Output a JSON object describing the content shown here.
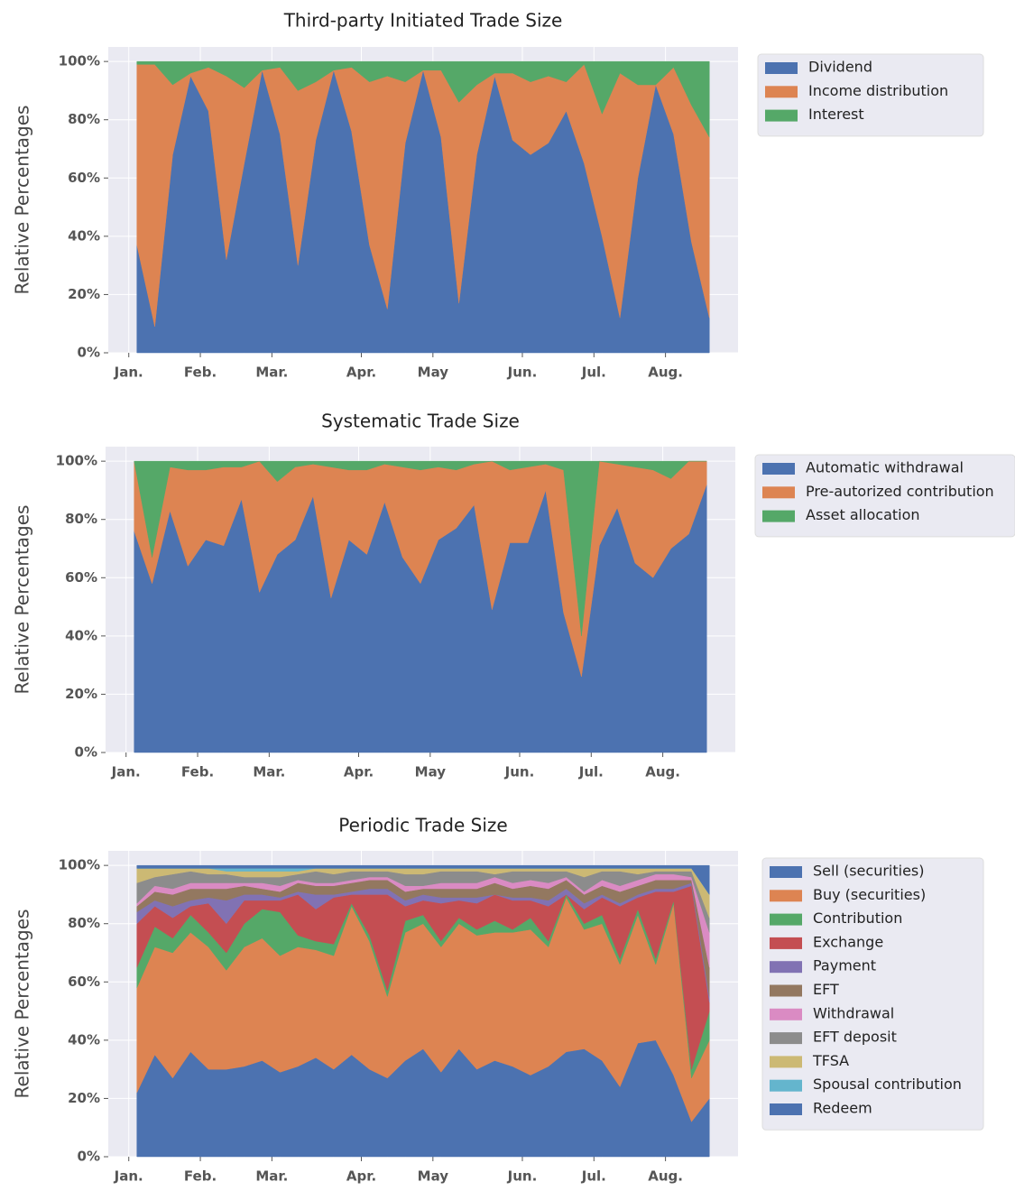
{
  "chart_data": [
    {
      "type": "area",
      "title": "Third-party Initiated Trade Size",
      "ylabel": "Relative Percentages",
      "categories": [
        "Jan.",
        null,
        null,
        null,
        "Feb.",
        null,
        null,
        null,
        "Mar.",
        null,
        null,
        null,
        null,
        "Apr.",
        null,
        null,
        null,
        "May",
        null,
        null,
        null,
        null,
        "Jun.",
        null,
        null,
        null,
        "Jul.",
        null,
        null,
        null,
        "Aug.",
        null,
        null
      ],
      "series": [
        {
          "name": "Dividend",
          "color": "#4c72b0",
          "values": [
            37,
            9,
            68,
            95,
            83,
            32,
            65,
            97,
            75,
            30,
            73,
            97,
            76,
            37,
            15,
            72,
            97,
            74,
            17,
            68,
            95,
            73,
            68,
            72,
            83,
            65,
            40,
            12,
            60,
            92,
            75,
            38,
            12
          ]
        },
        {
          "name": "Income distribution",
          "color": "#dd8452",
          "values": [
            62,
            90,
            24,
            1,
            15,
            63,
            26,
            0,
            23,
            60,
            20,
            0,
            22,
            56,
            80,
            21,
            0,
            23,
            69,
            24,
            1,
            23,
            25,
            23,
            10,
            34,
            42,
            84,
            32,
            0,
            23,
            47,
            62
          ]
        },
        {
          "name": "Interest",
          "color": "#55a868",
          "values": [
            1,
            1,
            8,
            4,
            2,
            5,
            9,
            3,
            2,
            10,
            7,
            3,
            2,
            7,
            5,
            7,
            3,
            3,
            14,
            8,
            4,
            4,
            7,
            5,
            7,
            1,
            18,
            4,
            8,
            8,
            2,
            15,
            26
          ]
        }
      ],
      "ylim": [
        0,
        105
      ],
      "yticks": [
        {
          "value": 0,
          "label": "0%"
        },
        {
          "value": 20,
          "label": "20%"
        },
        {
          "value": 40,
          "label": "40%"
        },
        {
          "value": 60,
          "label": "60%"
        },
        {
          "value": 80,
          "label": "80%"
        },
        {
          "value": 100,
          "label": "100%"
        }
      ],
      "grid": true,
      "legend": "outside upper right"
    },
    {
      "type": "area",
      "title": "Systematic Trade Size",
      "ylabel": "Relative Percentages",
      "categories": [
        "Jan.",
        null,
        null,
        null,
        "Feb.",
        null,
        null,
        null,
        "Mar.",
        null,
        null,
        null,
        null,
        "Apr.",
        null,
        null,
        null,
        "May",
        null,
        null,
        null,
        null,
        "Jun.",
        null,
        null,
        null,
        "Jul.",
        null,
        null,
        null,
        "Aug.",
        null,
        null
      ],
      "series": [
        {
          "name": "Automatic withdrawal",
          "color": "#4c72b0",
          "values": [
            76,
            58,
            83,
            64,
            73,
            71,
            87,
            55,
            68,
            73,
            88,
            53,
            73,
            68,
            86,
            67,
            58,
            73,
            77,
            85,
            49,
            72,
            72,
            90,
            48,
            26,
            71,
            84,
            65,
            60,
            70,
            75,
            92
          ]
        },
        {
          "name": "Pre-autorized contribution",
          "color": "#dd8452",
          "values": [
            24,
            9,
            15,
            33,
            24,
            27,
            11,
            45,
            25,
            25,
            11,
            45,
            24,
            29,
            13,
            31,
            39,
            25,
            20,
            14,
            51,
            25,
            26,
            9,
            49,
            14,
            29,
            15,
            33,
            37,
            24,
            25,
            8
          ]
        },
        {
          "name": "Asset allocation",
          "color": "#55a868",
          "values": [
            0,
            33,
            2,
            3,
            3,
            2,
            2,
            0,
            7,
            2,
            1,
            2,
            3,
            3,
            1,
            2,
            3,
            2,
            3,
            1,
            0,
            3,
            2,
            1,
            3,
            60,
            0,
            1,
            2,
            3,
            6,
            0,
            0
          ]
        }
      ],
      "ylim": [
        0,
        105
      ],
      "yticks": [
        {
          "value": 0,
          "label": "0%"
        },
        {
          "value": 20,
          "label": "20%"
        },
        {
          "value": 40,
          "label": "40%"
        },
        {
          "value": 60,
          "label": "60%"
        },
        {
          "value": 80,
          "label": "80%"
        },
        {
          "value": 100,
          "label": "100%"
        }
      ],
      "grid": true,
      "legend": "outside upper right"
    },
    {
      "type": "area",
      "title": "Periodic Trade Size",
      "ylabel": "Relative Percentages",
      "categories": [
        "Jan.",
        null,
        null,
        null,
        "Feb.",
        null,
        null,
        null,
        "Mar.",
        null,
        null,
        null,
        null,
        "Apr.",
        null,
        null,
        null,
        "May",
        null,
        null,
        null,
        null,
        "Jun.",
        null,
        null,
        null,
        "Jul.",
        null,
        null,
        null,
        "Aug.",
        null,
        null
      ],
      "series": [
        {
          "name": "Sell (securities)",
          "color": "#4c72b0",
          "values": [
            22,
            35,
            27,
            36,
            30,
            30,
            31,
            33,
            29,
            31,
            34,
            30,
            35,
            30,
            27,
            33,
            37,
            29,
            37,
            30,
            33,
            31,
            28,
            31,
            36,
            37,
            33,
            24,
            39,
            40,
            28,
            12,
            20
          ]
        },
        {
          "name": "Buy (securities)",
          "color": "#dd8452",
          "values": [
            36,
            37,
            43,
            41,
            42,
            34,
            41,
            42,
            40,
            41,
            37,
            39,
            51,
            44,
            28,
            44,
            43,
            43,
            43,
            46,
            44,
            46,
            50,
            41,
            53,
            41,
            47,
            42,
            44,
            26,
            59,
            15,
            20
          ]
        },
        {
          "name": "Contribution",
          "color": "#55a868",
          "values": [
            7,
            7,
            5,
            6,
            5,
            6,
            8,
            10,
            15,
            4,
            3,
            4,
            1,
            2,
            2,
            4,
            3,
            2,
            2,
            2,
            4,
            1,
            4,
            2,
            1,
            2,
            3,
            2,
            2,
            2,
            1,
            3,
            10
          ]
        },
        {
          "name": "Exchange",
          "color": "#c44e52",
          "values": [
            15,
            7,
            7,
            3,
            10,
            10,
            8,
            3,
            4,
            14,
            11,
            16,
            3,
            14,
            33,
            5,
            5,
            13,
            6,
            9,
            9,
            10,
            6,
            12,
            0,
            5,
            6,
            18,
            4,
            23,
            3,
            63,
            3
          ]
        },
        {
          "name": "Payment",
          "color": "#8172b3",
          "values": [
            4,
            2,
            4,
            2,
            2,
            8,
            2,
            2,
            1,
            1,
            5,
            1,
            1,
            2,
            2,
            2,
            2,
            2,
            1,
            2,
            0,
            1,
            1,
            2,
            2,
            2,
            1,
            1,
            1,
            1,
            1,
            1,
            2
          ]
        },
        {
          "name": "EFT",
          "color": "#937860",
          "values": [
            2,
            3,
            4,
            4,
            3,
            4,
            3,
            2,
            2,
            3,
            3,
            3,
            3,
            3,
            3,
            3,
            2,
            3,
            3,
            3,
            4,
            3,
            4,
            4,
            3,
            3,
            3,
            4,
            3,
            3,
            3,
            1,
            10
          ]
        },
        {
          "name": "Withdrawal",
          "color": "#da8bc3",
          "values": [
            1,
            2,
            2,
            2,
            2,
            2,
            1,
            2,
            2,
            1,
            1,
            1,
            1,
            1,
            1,
            2,
            1,
            2,
            2,
            2,
            2,
            2,
            2,
            2,
            1,
            1,
            2,
            2,
            2,
            2,
            2,
            1,
            12
          ]
        },
        {
          "name": "EFT deposit",
          "color": "#8c8c8c",
          "values": [
            7,
            3,
            5,
            4,
            3,
            3,
            2,
            2,
            3,
            2,
            4,
            3,
            3,
            2,
            2,
            4,
            4,
            4,
            4,
            4,
            1,
            4,
            3,
            4,
            2,
            5,
            3,
            5,
            2,
            1,
            1,
            2,
            5
          ]
        },
        {
          "name": "TFSA",
          "color": "#ccb974",
          "values": [
            5,
            3,
            2,
            1,
            2,
            1,
            2,
            2,
            2,
            1,
            1,
            2,
            1,
            1,
            1,
            2,
            2,
            1,
            1,
            1,
            2,
            1,
            1,
            1,
            1,
            3,
            1,
            1,
            2,
            1,
            1,
            1,
            8
          ]
        },
        {
          "name": "Spousal contribution",
          "color": "#64b5cd",
          "values": [
            0,
            0,
            0,
            0,
            0,
            1,
            1,
            1,
            1,
            1,
            0,
            0,
            0,
            0,
            0,
            0,
            0,
            0,
            0,
            0,
            0,
            0,
            0,
            0,
            0,
            0,
            0,
            0,
            0,
            0,
            0,
            0,
            0
          ]
        },
        {
          "name": "Redeem",
          "color": "#4c72b0",
          "values": [
            1,
            1,
            1,
            1,
            1,
            1,
            1,
            1,
            1,
            1,
            1,
            1,
            1,
            1,
            1,
            1,
            1,
            1,
            1,
            1,
            1,
            1,
            1,
            1,
            1,
            1,
            1,
            1,
            1,
            1,
            1,
            1,
            10
          ]
        }
      ],
      "ylim": [
        0,
        105
      ],
      "yticks": [
        {
          "value": 0,
          "label": "0%"
        },
        {
          "value": 20,
          "label": "20%"
        },
        {
          "value": 40,
          "label": "40%"
        },
        {
          "value": 60,
          "label": "60%"
        },
        {
          "value": 80,
          "label": "80%"
        },
        {
          "value": 100,
          "label": "100%"
        }
      ],
      "grid": true,
      "legend": "outside upper right"
    }
  ]
}
